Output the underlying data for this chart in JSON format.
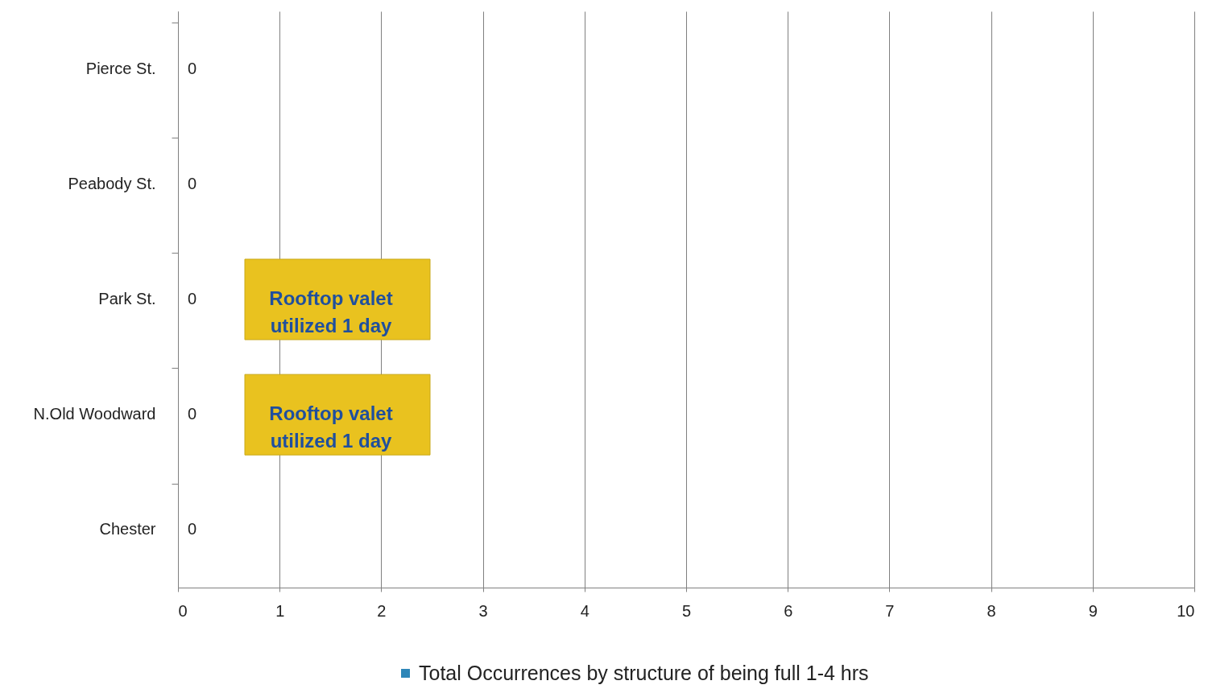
{
  "chart_data": {
    "type": "bar",
    "orientation": "horizontal",
    "categories": [
      "Pierce St.",
      "Peabody St.",
      "Park St.",
      "N.Old Woodward",
      "Chester"
    ],
    "series": [
      {
        "name": "Total Occurrences by structure of being full 1-4 hrs",
        "color": "#2e86b8",
        "values": [
          0,
          0,
          0,
          0,
          0
        ]
      }
    ],
    "xlim": [
      0,
      10
    ],
    "xticks": [
      0,
      1,
      2,
      3,
      4,
      5,
      6,
      7,
      8,
      9,
      10
    ],
    "grid": "x",
    "legend": "bottom",
    "data_labels": true,
    "annotations": [
      "Rooftop valet utilized 1 day",
      "Rooftop valet utilized 1 day"
    ]
  }
}
